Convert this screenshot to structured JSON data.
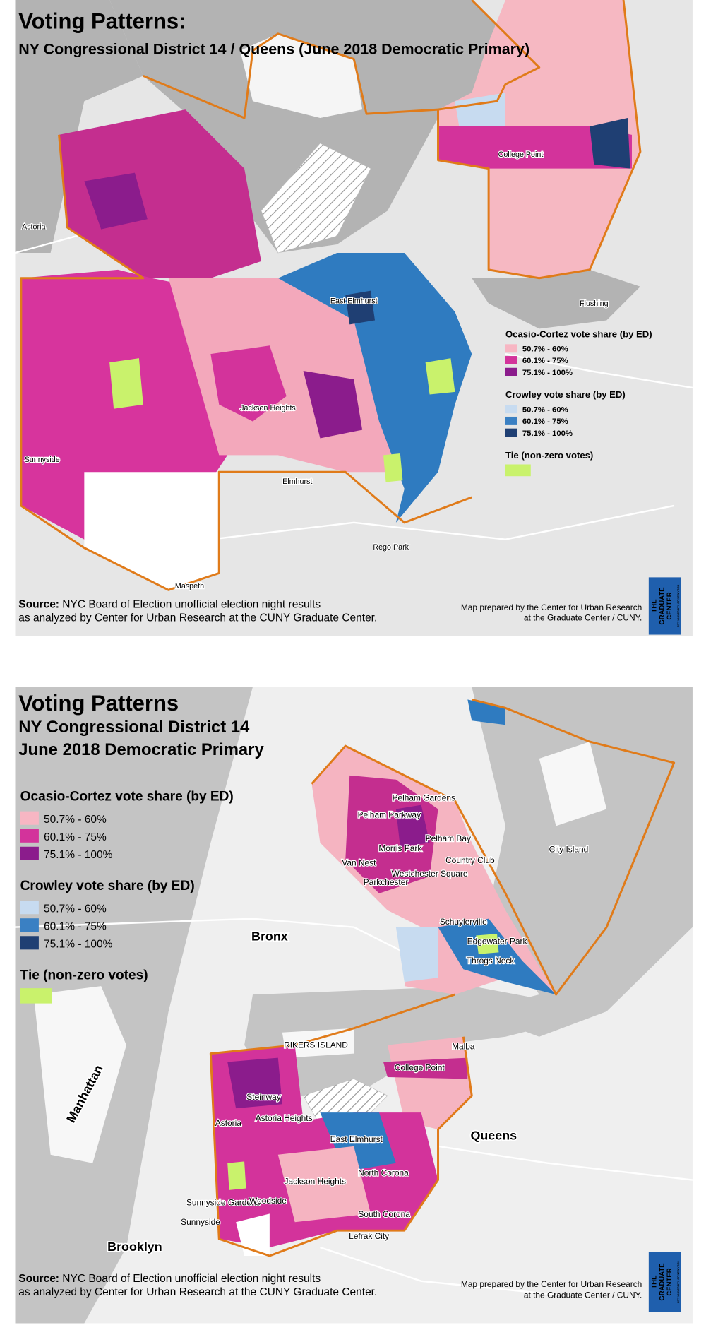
{
  "maps": [
    {
      "title": "Voting Patterns:",
      "subtitle": [
        "NY Congressional District 14 / Queens (June 2018 Democratic Primary)"
      ],
      "legend": {
        "groups": [
          {
            "title": "Ocasio-Cortez vote share (by ED)",
            "items": [
              {
                "label": "50.7% - 60%",
                "color": "#f7b6c3"
              },
              {
                "label": "60.1% - 75%",
                "color": "#d3339b"
              },
              {
                "label": "75.1% - 100%",
                "color": "#8b1c8c"
              }
            ]
          },
          {
            "title": "Crowley vote share (by ED)",
            "items": [
              {
                "label": "50.7% - 60%",
                "color": "#c7dbf0"
              },
              {
                "label": "60.1% - 75%",
                "color": "#3a80c3"
              },
              {
                "label": "75.1% - 100%",
                "color": "#1f3f73"
              }
            ]
          }
        ],
        "tie": {
          "title": "Tie (non-zero votes)",
          "color": "#c9f26c"
        }
      },
      "source": {
        "label": "Source:",
        "lines": [
          "NYC Board of Election unofficial election night results",
          "as analyzed by Center for Urban Research at the CUNY Graduate Center."
        ]
      },
      "credit": [
        "Map prepared by the Center for Urban Research",
        "at the Graduate Center / CUNY."
      ],
      "logo": [
        "THE",
        "GRADUATE",
        "CENTER",
        "CITY UNIVERSITY OF NEW YORK"
      ],
      "places": [
        "Astoria",
        "East Elmhurst",
        "Jackson Heights",
        "Sunnyside",
        "Elmhurst",
        "Flushing",
        "Rego Park",
        "Maspeth",
        "College Point"
      ]
    },
    {
      "title": "Voting Patterns",
      "subtitle": [
        "NY Congressional District 14",
        "June 2018 Democratic Primary"
      ],
      "legend": {
        "groups": [
          {
            "title": "Ocasio-Cortez vote share (by ED)",
            "items": [
              {
                "label": "50.7% - 60%",
                "color": "#f7b6c3"
              },
              {
                "label": "60.1% - 75%",
                "color": "#d3339b"
              },
              {
                "label": "75.1% - 100%",
                "color": "#8b1c8c"
              }
            ]
          },
          {
            "title": "Crowley vote share (by ED)",
            "items": [
              {
                "label": "50.7% - 60%",
                "color": "#c7dbf0"
              },
              {
                "label": "60.1% - 75%",
                "color": "#3a80c3"
              },
              {
                "label": "75.1% - 100%",
                "color": "#1f3f73"
              }
            ]
          }
        ],
        "tie": {
          "title": "Tie (non-zero votes)",
          "color": "#c9f26c"
        }
      },
      "source": {
        "label": "Source:",
        "lines": [
          "NYC Board of Election unofficial election night results",
          "as analyzed by Center for Urban Research at the CUNY Graduate Center."
        ]
      },
      "credit": [
        "Map prepared by the Center for Urban Research",
        "at the Graduate Center / CUNY."
      ],
      "logo": [
        "THE",
        "GRADUATE",
        "CENTER",
        "CITY UNIVERSITY OF NEW YORK"
      ],
      "places": [
        "Pelham Gardens",
        "Pelham Parkway",
        "Pelham Bay",
        "Morris Park",
        "Van Nest",
        "Country Club",
        "Westchester Square",
        "Parkchester",
        "City Island",
        "Bronx",
        "Schuylerville",
        "Edgewater Park",
        "Throgs Neck",
        "RIKERS ISLAND",
        "Malba",
        "College Point",
        "Manhattan",
        "Steinway",
        "Astoria",
        "Astoria Heights",
        "East Elmhurst",
        "Queens",
        "North Corona",
        "Jackson Heights",
        "Sunnyside Gardens",
        "Woodside",
        "Sunnyside",
        "South Corona",
        "Lefrak City",
        "Brooklyn"
      ]
    }
  ]
}
